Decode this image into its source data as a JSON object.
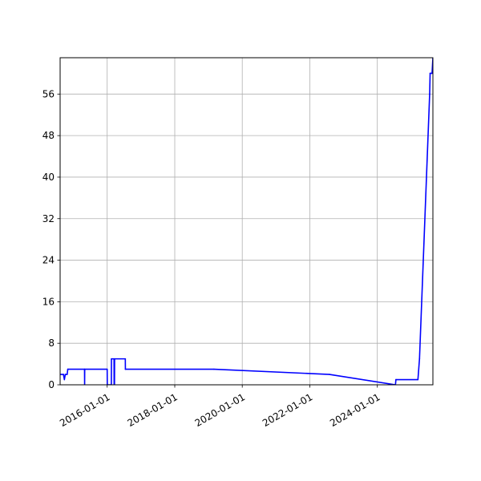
{
  "chart_data": {
    "type": "line",
    "title": "",
    "xlabel": "",
    "ylabel": "",
    "grid": true,
    "legend": "none",
    "x_type": "date",
    "xlim": [
      "2014-08-10",
      "2025-08-24"
    ],
    "ylim": [
      0,
      63
    ],
    "xticks": [
      "2016-01-01",
      "2018-01-01",
      "2020-01-01",
      "2022-01-01",
      "2024-01-01"
    ],
    "yticks": [
      0,
      8,
      16,
      24,
      32,
      40,
      48,
      56
    ],
    "series": [
      {
        "color": "#0000ff",
        "points": [
          [
            "2014-08-10",
            2
          ],
          [
            "2014-09-15",
            2
          ],
          [
            "2014-09-25",
            1
          ],
          [
            "2014-10-05",
            2
          ],
          [
            "2014-10-25",
            2
          ],
          [
            "2014-11-01",
            3
          ],
          [
            "2015-05-01",
            3
          ],
          [
            "2015-05-02",
            0
          ],
          [
            "2015-05-03",
            3
          ],
          [
            "2016-01-01",
            3
          ],
          [
            "2016-01-02",
            0
          ],
          [
            "2016-02-15",
            0
          ],
          [
            "2016-02-16",
            5
          ],
          [
            "2016-03-15",
            5
          ],
          [
            "2016-03-16",
            0
          ],
          [
            "2016-03-20",
            0
          ],
          [
            "2016-03-21",
            5
          ],
          [
            "2016-07-15",
            5
          ],
          [
            "2016-07-16",
            3
          ],
          [
            "2019-03-01",
            3
          ],
          [
            "2022-08-01",
            2
          ],
          [
            "2024-07-15",
            0
          ],
          [
            "2024-07-20",
            1
          ],
          [
            "2025-03-15",
            1
          ],
          [
            "2025-04-01",
            5
          ],
          [
            "2025-07-20",
            56
          ],
          [
            "2025-07-25",
            60
          ],
          [
            "2025-08-15",
            60
          ],
          [
            "2025-08-24",
            63
          ]
        ]
      }
    ]
  }
}
